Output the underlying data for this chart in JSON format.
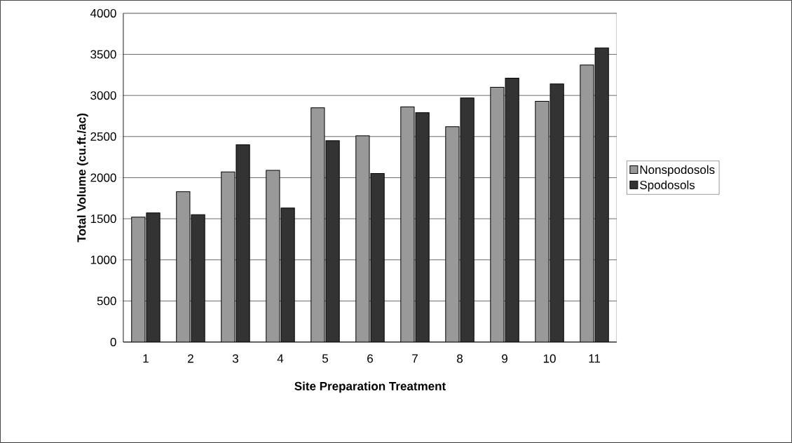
{
  "chart_data": {
    "type": "bar",
    "xlabel": "Site Preparation Treatment",
    "ylabel": "Total Volume (cu.ft./ac)",
    "categories": [
      "1",
      "2",
      "3",
      "4",
      "5",
      "6",
      "7",
      "8",
      "9",
      "10",
      "11"
    ],
    "series": [
      {
        "name": "Nonspodosols",
        "color": "#999999",
        "values": [
          1520,
          1830,
          2070,
          2090,
          2850,
          2510,
          2860,
          2620,
          3100,
          2930,
          3370
        ]
      },
      {
        "name": "Spodosols",
        "color": "#333333",
        "values": [
          1570,
          1550,
          2400,
          1630,
          2450,
          2050,
          2790,
          2970,
          3210,
          3140,
          3580
        ]
      }
    ],
    "ylim": [
      0,
      4000
    ],
    "yticks": [
      0,
      500,
      1000,
      1500,
      2000,
      2500,
      3000,
      3500,
      4000
    ],
    "grid": "y",
    "legend": "right"
  }
}
